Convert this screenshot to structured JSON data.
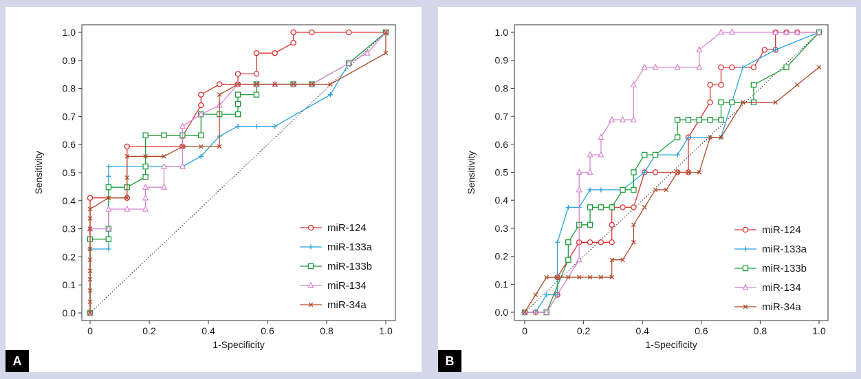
{
  "chart_data": [
    {
      "type": "line",
      "panel": "A",
      "xlabel": "1-Specificity",
      "ylabel": "Sensitivity",
      "xlim": [
        0,
        1
      ],
      "ylim": [
        0,
        1
      ],
      "xticks": [
        "0",
        "0.2",
        "0.4",
        "0.6",
        "0.8",
        "1.0"
      ],
      "yticks": [
        "0.0",
        "0.1",
        "0.2",
        "0.3",
        "0.4",
        "0.5",
        "0.6",
        "0.7",
        "0.8",
        "0.9",
        "1.0"
      ],
      "legend_position": "bottom-right",
      "grid": false,
      "reference_line": "diagonal-dotted",
      "series": [
        {
          "name": "miR-124",
          "color": "#e03030",
          "marker": "circle",
          "x": [
            0,
            0,
            0.125,
            0.125,
            0.3125,
            0.3125,
            0.375,
            0.375,
            0.4375,
            0.5,
            0.5,
            0.5625,
            0.5625,
            0.625,
            0.6875,
            0.6875,
            0.75,
            0.875,
            1.0
          ],
          "y": [
            0,
            0.41,
            0.41,
            0.593,
            0.593,
            0.63,
            0.74,
            0.778,
            0.815,
            0.815,
            0.852,
            0.852,
            0.926,
            0.926,
            0.963,
            1.0,
            1.0,
            1.0,
            1.0
          ]
        },
        {
          "name": "miR-133a",
          "color": "#2aa5e0",
          "marker": "plus",
          "x": [
            0,
            0,
            0.0625,
            0.0625,
            0.0625,
            0.25,
            0.3125,
            0.375,
            0.4375,
            0.5,
            0.5625,
            0.625,
            0.8125,
            0.875,
            1.0
          ],
          "y": [
            0,
            0.228,
            0.228,
            0.487,
            0.522,
            0.522,
            0.522,
            0.558,
            0.63,
            0.665,
            0.665,
            0.665,
            0.778,
            0.89,
            1.0
          ]
        },
        {
          "name": "miR-133b",
          "color": "#1e9e3a",
          "marker": "square",
          "x": [
            0,
            0,
            0.0625,
            0.0625,
            0.0625,
            0.125,
            0.1875,
            0.1875,
            0.1875,
            0.25,
            0.3125,
            0.375,
            0.375,
            0.4375,
            0.5,
            0.5,
            0.5,
            0.5625,
            0.5625,
            0.6875,
            0.75,
            0.875,
            1.0
          ],
          "y": [
            0,
            0.263,
            0.263,
            0.3,
            0.448,
            0.448,
            0.485,
            0.522,
            0.633,
            0.633,
            0.633,
            0.633,
            0.708,
            0.708,
            0.708,
            0.745,
            0.778,
            0.778,
            0.815,
            0.815,
            0.815,
            0.89,
            1.0
          ]
        },
        {
          "name": "miR-134",
          "color": "#d985d3",
          "marker": "triangle",
          "x": [
            0,
            0,
            0.0625,
            0.0625,
            0.125,
            0.1875,
            0.1875,
            0.1875,
            0.25,
            0.25,
            0.3125,
            0.3125,
            0.375,
            0.4375,
            0.5,
            0.5625,
            0.625,
            0.6875,
            0.75,
            0.875,
            0.9375,
            1.0
          ],
          "y": [
            0,
            0.3,
            0.3,
            0.37,
            0.37,
            0.37,
            0.41,
            0.448,
            0.448,
            0.522,
            0.522,
            0.665,
            0.708,
            0.74,
            0.815,
            0.815,
            0.815,
            0.815,
            0.815,
            0.89,
            0.926,
            1.0
          ]
        },
        {
          "name": "miR-34a",
          "color": "#b04a28",
          "marker": "x",
          "x": [
            0,
            0,
            0,
            0,
            0,
            0,
            0,
            0,
            0,
            0,
            0.0625,
            0.125,
            0.125,
            0.125,
            0.1875,
            0.25,
            0.3125,
            0.375,
            0.4375,
            0.4375,
            0.5,
            0.5625,
            0.625,
            0.6875,
            0.75,
            0.8125,
            1.0,
            1.0
          ],
          "y": [
            0,
            0.04,
            0.08,
            0.12,
            0.15,
            0.19,
            0.228,
            0.3,
            0.337,
            0.37,
            0.41,
            0.41,
            0.482,
            0.558,
            0.558,
            0.558,
            0.593,
            0.593,
            0.593,
            0.778,
            0.815,
            0.815,
            0.815,
            0.815,
            0.815,
            0.815,
            0.926,
            1.0
          ]
        }
      ]
    },
    {
      "type": "line",
      "panel": "B",
      "xlabel": "1-Specificity",
      "ylabel": "Sensitivity",
      "xlim": [
        0,
        1
      ],
      "ylim": [
        0,
        1
      ],
      "xticks": [
        "0",
        "0.2",
        "0.4",
        "0.6",
        "0.8",
        "1.0"
      ],
      "yticks": [
        "0.0",
        "0.1",
        "0.2",
        "0.3",
        "0.4",
        "0.5",
        "0.6",
        "0.7",
        "0.8",
        "0.9",
        "1.0"
      ],
      "legend_position": "bottom-right",
      "grid": false,
      "reference_line": "diagonal-dotted",
      "series": [
        {
          "name": "miR-124",
          "color": "#e03030",
          "marker": "circle",
          "x": [
            0,
            0.037,
            0.074,
            0.111,
            0.111,
            0.185,
            0.222,
            0.259,
            0.296,
            0.296,
            0.296,
            0.333,
            0.37,
            0.407,
            0.444,
            0.519,
            0.556,
            0.556,
            0.63,
            0.63,
            0.667,
            0.667,
            0.704,
            0.778,
            0.815,
            0.852,
            0.852,
            0.889,
            0.926,
            1.0
          ],
          "y": [
            0,
            0,
            0,
            0.0625,
            0.125,
            0.25,
            0.25,
            0.25,
            0.25,
            0.3125,
            0.375,
            0.375,
            0.375,
            0.5,
            0.5,
            0.5,
            0.5,
            0.625,
            0.75,
            0.8125,
            0.8125,
            0.875,
            0.875,
            0.875,
            0.9375,
            0.9375,
            1.0,
            1.0,
            1.0,
            1.0
          ]
        },
        {
          "name": "miR-133a",
          "color": "#2aa5e0",
          "marker": "plus",
          "x": [
            0,
            0.037,
            0.074,
            0.111,
            0.111,
            0.148,
            0.185,
            0.222,
            0.259,
            0.333,
            0.407,
            0.444,
            0.519,
            0.556,
            0.63,
            0.667,
            0.741,
            0.852,
            1.0
          ],
          "y": [
            0,
            0,
            0.0625,
            0.0625,
            0.25,
            0.375,
            0.375,
            0.4375,
            0.4375,
            0.4375,
            0.5,
            0.5625,
            0.5625,
            0.625,
            0.625,
            0.625,
            0.875,
            0.9375,
            1.0
          ]
        },
        {
          "name": "miR-133b",
          "color": "#1e9e3a",
          "marker": "square",
          "x": [
            0,
            0.074,
            0.148,
            0.148,
            0.185,
            0.222,
            0.222,
            0.259,
            0.296,
            0.333,
            0.37,
            0.37,
            0.407,
            0.444,
            0.519,
            0.519,
            0.556,
            0.593,
            0.63,
            0.667,
            0.667,
            0.704,
            0.778,
            0.778,
            0.889,
            1.0
          ],
          "y": [
            0,
            0,
            0.1875,
            0.25,
            0.3125,
            0.3125,
            0.375,
            0.375,
            0.375,
            0.4375,
            0.4375,
            0.5,
            0.5625,
            0.5625,
            0.625,
            0.6875,
            0.6875,
            0.6875,
            0.6875,
            0.6875,
            0.75,
            0.75,
            0.75,
            0.8125,
            0.875,
            1.0
          ]
        },
        {
          "name": "miR-134",
          "color": "#d985d3",
          "marker": "triangle",
          "x": [
            0,
            0.074,
            0.185,
            0.185,
            0.185,
            0.222,
            0.222,
            0.259,
            0.259,
            0.296,
            0.333,
            0.37,
            0.37,
            0.407,
            0.444,
            0.519,
            0.593,
            0.593,
            0.667,
            0.704,
            0.852,
            0.889,
            0.926,
            1.0
          ],
          "y": [
            0,
            0,
            0.1875,
            0.4375,
            0.5,
            0.5,
            0.5625,
            0.5625,
            0.625,
            0.6875,
            0.6875,
            0.6875,
            0.8125,
            0.875,
            0.875,
            0.875,
            0.875,
            0.9375,
            1.0,
            1.0,
            1.0,
            1.0,
            1.0,
            1.0
          ]
        },
        {
          "name": "miR-34a",
          "color": "#b04a28",
          "marker": "x",
          "x": [
            0,
            0.037,
            0.074,
            0.111,
            0.148,
            0.185,
            0.222,
            0.259,
            0.296,
            0.296,
            0.333,
            0.37,
            0.37,
            0.407,
            0.444,
            0.481,
            0.519,
            0.556,
            0.593,
            0.63,
            0.667,
            0.741,
            0.852,
            0.926,
            1.0
          ],
          "y": [
            0,
            0.0625,
            0.125,
            0.125,
            0.125,
            0.125,
            0.125,
            0.125,
            0.125,
            0.1875,
            0.1875,
            0.25,
            0.3125,
            0.375,
            0.4375,
            0.4375,
            0.5,
            0.5,
            0.5,
            0.625,
            0.625,
            0.75,
            0.75,
            0.8125,
            0.875
          ]
        }
      ]
    }
  ],
  "panels": {
    "a_letter": "A",
    "b_letter": "B"
  }
}
